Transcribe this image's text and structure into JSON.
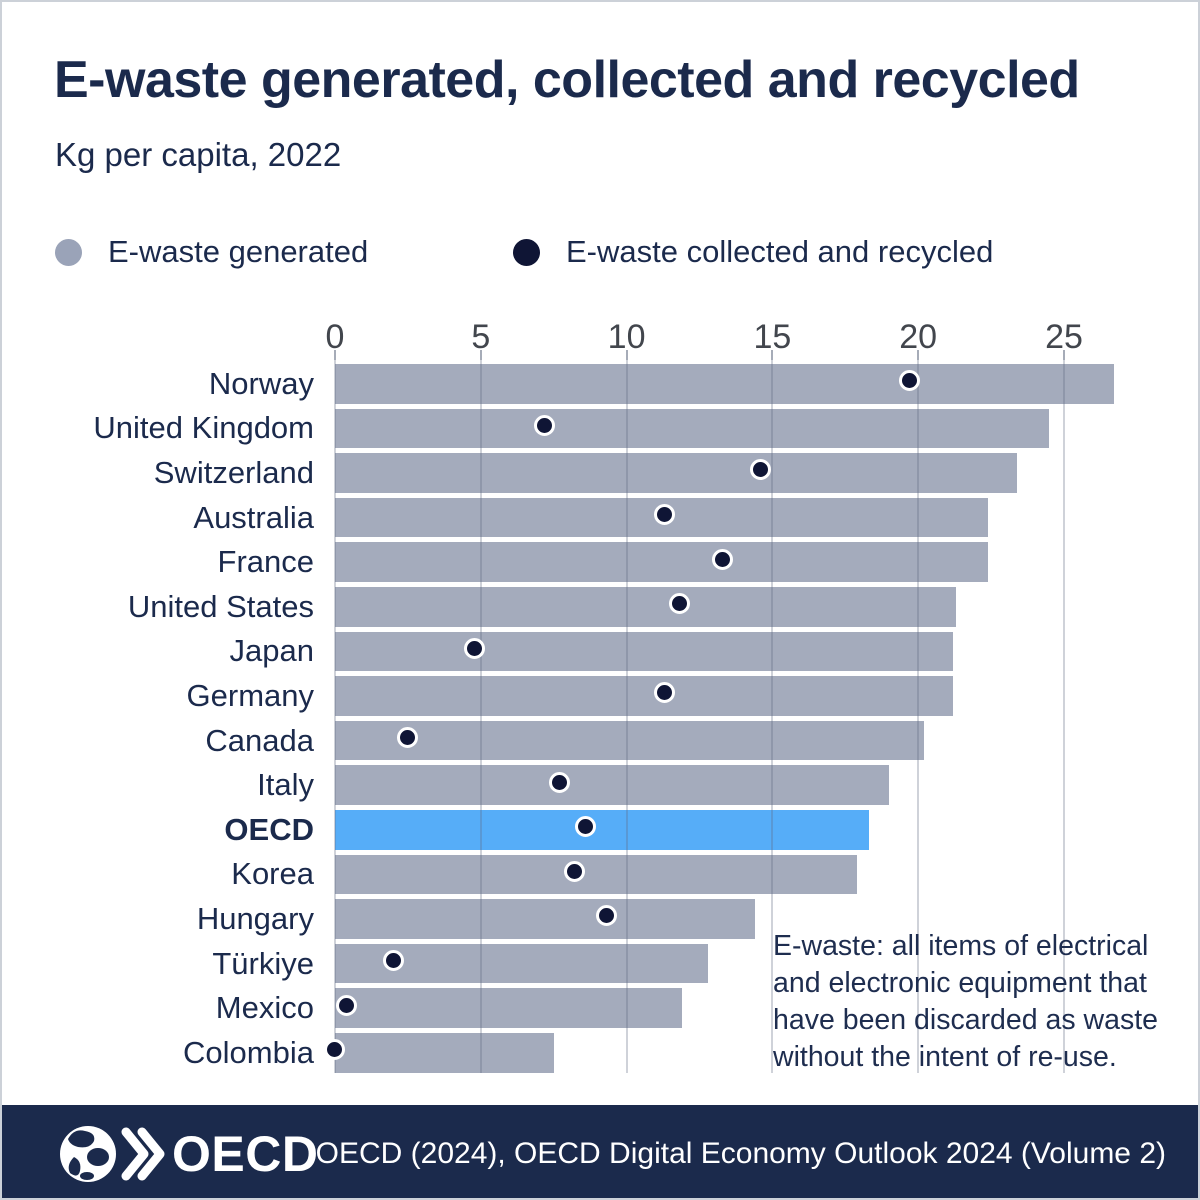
{
  "title": "E-waste generated, collected and recycled",
  "subtitle": "Kg per capita, 2022",
  "legend": {
    "generated": {
      "label": "E-waste generated",
      "color": "#9aa3b8"
    },
    "collected": {
      "label": "E-waste collected and recycled",
      "color": "#0f1535"
    }
  },
  "note": {
    "text": "E-waste: all items of electrical and electronic equipment that have been discarded as waste without the intent of re-use.",
    "lines": [
      "E-waste: all items of electrical",
      "and electronic equipment that",
      "have been discarded as waste",
      "without the intent of re-use."
    ]
  },
  "footer": {
    "logo_text": "OECD",
    "citation": "OECD (2024), OECD Digital Economy Outlook 2024 (Volume 2)"
  },
  "colors": {
    "bar_gray": "#a4abbc",
    "bar_highlight_blue": "#56adf8",
    "dot_navy": "#0f1535",
    "text_navy": "#1b2a4c",
    "gridline": "#c9cdd6",
    "tick_text": "#42464d",
    "footer_bg": "#1b2a4c"
  },
  "chart_data": {
    "type": "bar",
    "orientation": "horizontal",
    "title": "E-waste generated, collected and recycled",
    "unit_label": "Kg per capita, 2022",
    "categories": [
      "Norway",
      "United Kingdom",
      "Switzerland",
      "Australia",
      "France",
      "United States",
      "Japan",
      "Germany",
      "Canada",
      "Italy",
      "OECD",
      "Korea",
      "Hungary",
      "Türkiye",
      "Mexico",
      "Colombia"
    ],
    "highlight_category": "OECD",
    "series": [
      {
        "name": "E-waste generated",
        "style": "bar",
        "values": [
          26.7,
          24.5,
          23.4,
          22.4,
          22.4,
          21.3,
          21.2,
          21.2,
          20.2,
          19.0,
          18.3,
          17.9,
          14.4,
          12.8,
          11.9,
          7.5
        ]
      },
      {
        "name": "E-waste collected and recycled",
        "style": "dot",
        "values": [
          19.8,
          7.3,
          14.7,
          11.4,
          13.4,
          11.9,
          4.9,
          11.4,
          2.6,
          7.8,
          8.7,
          8.3,
          9.4,
          2.1,
          0.5,
          0.1
        ]
      }
    ],
    "xticks": [
      0,
      5,
      10,
      15,
      20,
      25
    ],
    "xlim": [
      0,
      28.3
    ],
    "grid": true,
    "legend_position": "top"
  }
}
